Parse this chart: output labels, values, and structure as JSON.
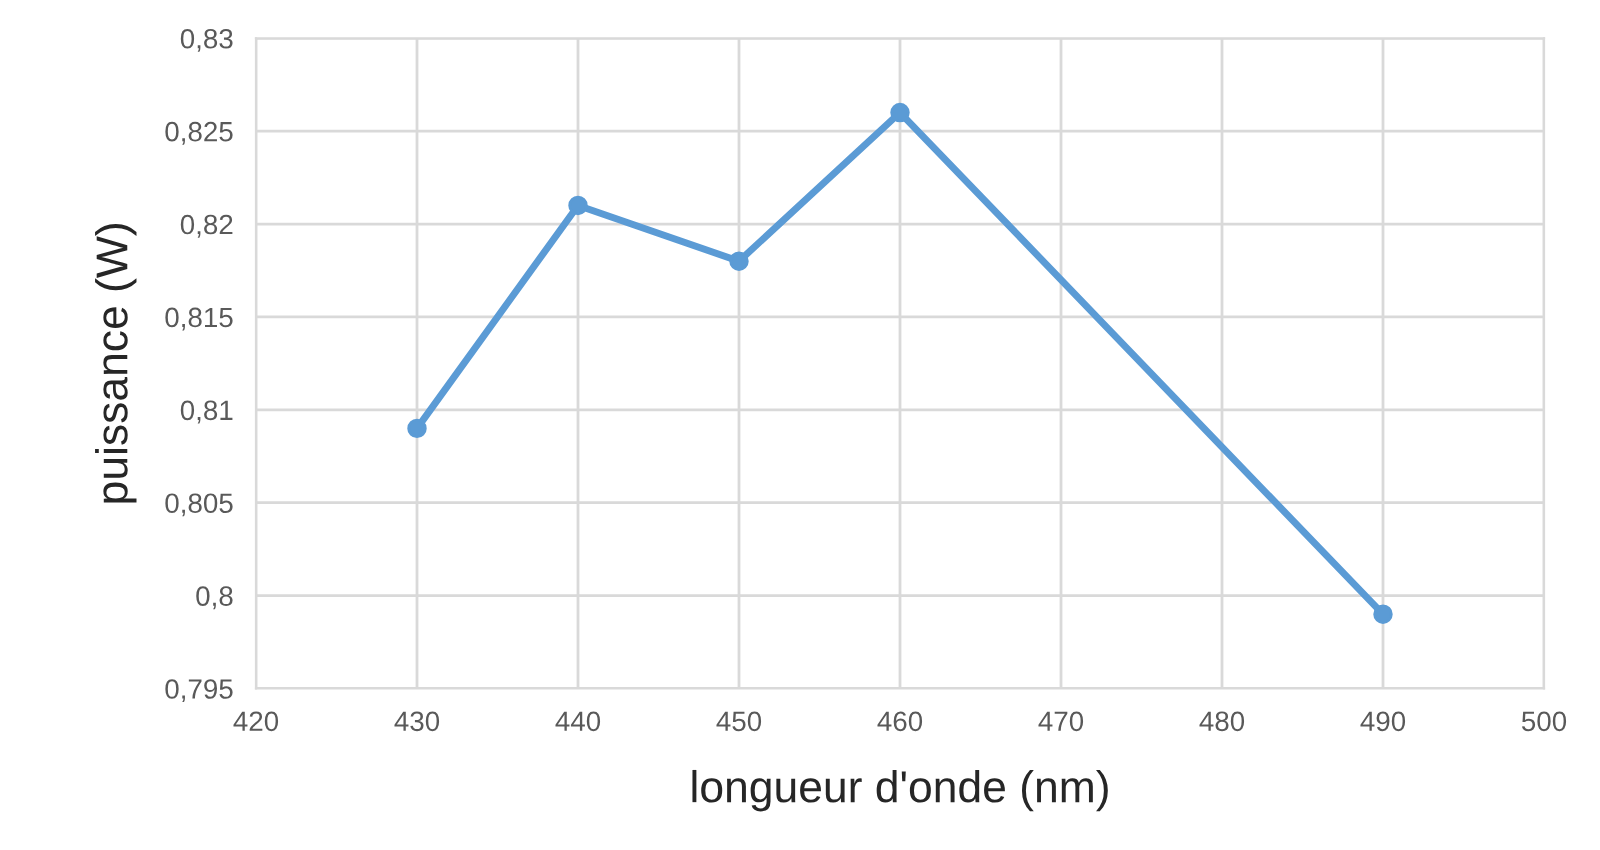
{
  "chart_data": {
    "type": "line",
    "xlabel": "longueur d'onde (nm)",
    "ylabel": "puissance (W)",
    "x": [
      430,
      440,
      450,
      460,
      490
    ],
    "series": [
      {
        "color": "#5b9bd5",
        "values": [
          0.809,
          0.821,
          0.818,
          0.826,
          0.799
        ]
      }
    ],
    "xlim": [
      420,
      500
    ],
    "xticks": [
      420,
      430,
      440,
      450,
      460,
      470,
      480,
      490,
      500
    ],
    "ylim": [
      0.795,
      0.83
    ],
    "yticks": [
      {
        "value": 0.795,
        "label": "0,795"
      },
      {
        "value": 0.8,
        "label": "0,8"
      },
      {
        "value": 0.805,
        "label": "0,805"
      },
      {
        "value": 0.81,
        "label": "0,81"
      },
      {
        "value": 0.815,
        "label": "0,815"
      },
      {
        "value": 0.82,
        "label": "0,82"
      },
      {
        "value": 0.825,
        "label": "0,825"
      },
      {
        "value": 0.83,
        "label": "0,83"
      }
    ],
    "grid": true,
    "marker": "circle",
    "line_style": "solid"
  }
}
